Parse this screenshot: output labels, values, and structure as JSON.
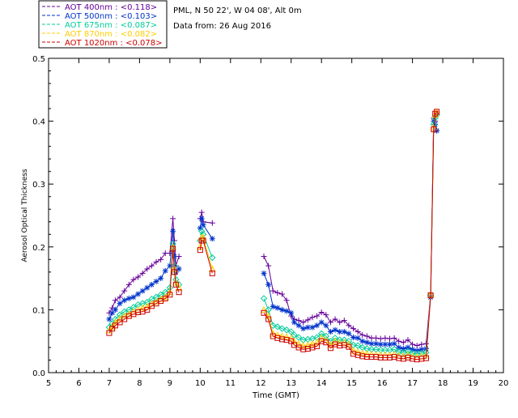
{
  "chart_data": {
    "type": "line",
    "xlabel": "Time (GMT)",
    "ylabel": "Aerosol Optical Thickness",
    "xlim": [
      5,
      20
    ],
    "ylim": [
      0,
      0.5
    ],
    "xticks": [
      5,
      6,
      7,
      8,
      9,
      10,
      11,
      12,
      13,
      14,
      15,
      16,
      17,
      18,
      19,
      20
    ],
    "yticks": [
      0.0,
      0.1,
      0.2,
      0.3,
      0.4,
      0.5
    ],
    "ytick_labels": [
      "0.0",
      "0.1",
      "0.2",
      "0.3",
      "0.4",
      "0.5"
    ],
    "info_lines": [
      "PML, N 50 22', W 04 08', Alt 0m",
      "Data from: 26 Aug 2016"
    ],
    "legend": [
      {
        "label": "AOT  400nm : <0.118>",
        "color": "#660099",
        "marker": "plus"
      },
      {
        "label": "AOT  500nm : <0.103>",
        "color": "#0033cc",
        "marker": "asterisk"
      },
      {
        "label": "AOT  675nm : <0.087>",
        "color": "#00cc99",
        "marker": "diamond"
      },
      {
        "label": "AOT  870nm : <0.082>",
        "color": "#ffcc00",
        "marker": "triangle"
      },
      {
        "label": "AOT 1020nm : <0.078>",
        "color": "#cc0000",
        "marker": "square"
      }
    ],
    "x": [
      7.0,
      7.1,
      7.2,
      7.35,
      7.5,
      7.65,
      7.8,
      7.95,
      8.1,
      8.25,
      8.4,
      8.55,
      8.7,
      8.85,
      9.0,
      9.1,
      9.15,
      9.2,
      9.3,
      10.0,
      10.05,
      10.1,
      10.4,
      12.1,
      12.25,
      12.4,
      12.55,
      12.7,
      12.85,
      13.0,
      13.1,
      13.25,
      13.4,
      13.55,
      13.7,
      13.85,
      14.0,
      14.15,
      14.3,
      14.45,
      14.6,
      14.75,
      14.9,
      15.05,
      15.2,
      15.35,
      15.5,
      15.65,
      15.8,
      15.95,
      16.1,
      16.25,
      16.4,
      16.55,
      16.7,
      16.85,
      17.0,
      17.15,
      17.3,
      17.45,
      17.6,
      17.7,
      17.75,
      17.8
    ],
    "series": [
      {
        "name": "AOT 400nm",
        "values": [
          0.095,
          0.103,
          0.115,
          0.12,
          0.13,
          0.14,
          0.148,
          0.152,
          0.158,
          0.165,
          0.17,
          0.176,
          0.18,
          0.19,
          0.19,
          0.245,
          0.21,
          0.17,
          0.185,
          0.245,
          0.255,
          0.24,
          0.238,
          0.185,
          0.17,
          0.13,
          0.127,
          0.125,
          0.115,
          0.09,
          0.085,
          0.083,
          0.08,
          0.084,
          0.088,
          0.09,
          0.096,
          0.092,
          0.08,
          0.085,
          0.08,
          0.083,
          0.075,
          0.07,
          0.065,
          0.06,
          0.058,
          0.055,
          0.055,
          0.054,
          0.055,
          0.054,
          0.055,
          0.05,
          0.048,
          0.052,
          0.045,
          0.043,
          0.045,
          0.046,
          0.125,
          0.405,
          0.4,
          0.385
        ]
      },
      {
        "name": "AOT 500nm",
        "values": [
          0.085,
          0.095,
          0.1,
          0.11,
          0.115,
          0.118,
          0.12,
          0.125,
          0.13,
          0.135,
          0.14,
          0.145,
          0.15,
          0.162,
          0.17,
          0.225,
          0.185,
          0.16,
          0.165,
          0.23,
          0.245,
          0.235,
          0.213,
          0.158,
          0.14,
          0.105,
          0.103,
          0.1,
          0.098,
          0.095,
          0.08,
          0.075,
          0.07,
          0.072,
          0.072,
          0.075,
          0.08,
          0.075,
          0.065,
          0.068,
          0.065,
          0.065,
          0.062,
          0.056,
          0.055,
          0.05,
          0.048,
          0.046,
          0.046,
          0.045,
          0.045,
          0.045,
          0.046,
          0.04,
          0.038,
          0.04,
          0.037,
          0.035,
          0.037,
          0.038,
          0.12,
          0.4,
          0.395,
          0.385
        ]
      },
      {
        "name": "AOT 675nm",
        "values": [
          0.072,
          0.078,
          0.085,
          0.092,
          0.097,
          0.1,
          0.104,
          0.108,
          0.11,
          0.112,
          0.117,
          0.12,
          0.124,
          0.128,
          0.135,
          0.205,
          0.17,
          0.148,
          0.14,
          0.21,
          0.225,
          0.22,
          0.183,
          0.118,
          0.1,
          0.075,
          0.073,
          0.07,
          0.068,
          0.065,
          0.06,
          0.056,
          0.052,
          0.053,
          0.054,
          0.056,
          0.062,
          0.058,
          0.05,
          0.055,
          0.052,
          0.052,
          0.05,
          0.044,
          0.043,
          0.04,
          0.038,
          0.037,
          0.037,
          0.036,
          0.036,
          0.036,
          0.037,
          0.033,
          0.032,
          0.034,
          0.031,
          0.03,
          0.031,
          0.032,
          0.123,
          0.395,
          0.405,
          0.41
        ]
      },
      {
        "name": "AOT 870nm",
        "values": [
          0.067,
          0.073,
          0.08,
          0.086,
          0.09,
          0.093,
          0.097,
          0.1,
          0.103,
          0.105,
          0.11,
          0.113,
          0.117,
          0.12,
          0.128,
          0.2,
          0.165,
          0.143,
          0.135,
          0.2,
          0.215,
          0.215,
          0.165,
          0.1,
          0.09,
          0.062,
          0.06,
          0.058,
          0.057,
          0.055,
          0.05,
          0.046,
          0.043,
          0.044,
          0.046,
          0.048,
          0.055,
          0.052,
          0.044,
          0.05,
          0.047,
          0.048,
          0.045,
          0.035,
          0.033,
          0.031,
          0.03,
          0.029,
          0.029,
          0.028,
          0.028,
          0.028,
          0.029,
          0.027,
          0.026,
          0.028,
          0.026,
          0.025,
          0.026,
          0.027,
          0.124,
          0.39,
          0.41,
          0.415
        ]
      },
      {
        "name": "AOT 1020nm",
        "values": [
          0.063,
          0.07,
          0.075,
          0.08,
          0.085,
          0.09,
          0.093,
          0.096,
          0.097,
          0.1,
          0.106,
          0.11,
          0.114,
          0.118,
          0.124,
          0.197,
          0.16,
          0.14,
          0.128,
          0.195,
          0.21,
          0.21,
          0.158,
          0.095,
          0.085,
          0.058,
          0.055,
          0.053,
          0.052,
          0.05,
          0.044,
          0.04,
          0.037,
          0.038,
          0.04,
          0.042,
          0.05,
          0.048,
          0.039,
          0.045,
          0.043,
          0.044,
          0.041,
          0.03,
          0.028,
          0.026,
          0.025,
          0.025,
          0.025,
          0.024,
          0.024,
          0.024,
          0.025,
          0.023,
          0.022,
          0.024,
          0.022,
          0.021,
          0.022,
          0.023,
          0.123,
          0.387,
          0.412,
          0.415
        ]
      }
    ]
  }
}
